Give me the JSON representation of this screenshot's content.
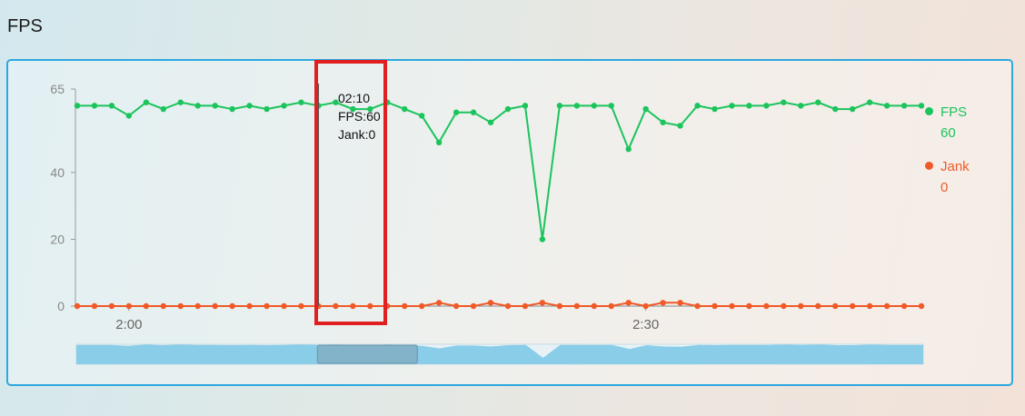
{
  "page": {
    "title": "FPS"
  },
  "colors": {
    "fps": "#1cc45c",
    "jank": "#f05a28",
    "panel_border": "#2ca8e0",
    "zoom_fill": "#89cde8",
    "highlight": "#e02020"
  },
  "tooltip": {
    "time": "02:10",
    "fps_line": "FPS:60",
    "jank_line": "Jank:0"
  },
  "legend": [
    {
      "name": "FPS",
      "value": "60"
    },
    {
      "name": "Jank",
      "value": "0"
    }
  ],
  "chart_data": {
    "type": "line",
    "x": [
      117,
      118,
      119,
      120,
      121,
      122,
      123,
      124,
      125,
      126,
      127,
      128,
      129,
      130,
      131,
      132,
      133,
      134,
      135,
      136,
      137,
      138,
      139,
      140,
      141,
      142,
      143,
      144,
      145,
      146,
      147,
      148,
      149,
      150,
      151,
      152,
      153,
      154,
      155,
      156,
      157,
      158,
      159,
      160,
      161,
      162,
      163,
      164,
      165,
      166
    ],
    "x_unit": "seconds",
    "xticks": [
      120,
      150
    ],
    "xtick_labels": [
      "2:00",
      "2:30"
    ],
    "yticks": [
      0,
      20,
      40,
      65
    ],
    "ytick_labels": [
      "0",
      "20",
      "40",
      "65"
    ],
    "ylim": [
      0,
      65
    ],
    "series": [
      {
        "name": "FPS",
        "values": [
          60,
          60,
          60,
          57,
          61,
          59,
          61,
          60,
          60,
          59,
          60,
          59,
          60,
          61,
          60,
          61,
          59,
          59,
          61,
          59,
          57,
          49,
          58,
          58,
          55,
          59,
          60,
          20,
          60,
          60,
          60,
          60,
          47,
          59,
          55,
          54,
          60,
          59,
          60,
          60,
          60,
          61,
          60,
          61,
          59,
          59,
          61,
          60,
          60,
          60
        ]
      },
      {
        "name": "Jank",
        "values": [
          0,
          0,
          0,
          0,
          0,
          0,
          0,
          0,
          0,
          0,
          0,
          0,
          0,
          0,
          0,
          0,
          0,
          0,
          0,
          0,
          0,
          1,
          0,
          0,
          1,
          0,
          0,
          1,
          0,
          0,
          0,
          0,
          1,
          0,
          1,
          1,
          0,
          0,
          0,
          0,
          0,
          0,
          0,
          0,
          0,
          0,
          0,
          0,
          0,
          0
        ]
      }
    ],
    "selected_x": 131,
    "legend_position": "right",
    "grid": false
  }
}
